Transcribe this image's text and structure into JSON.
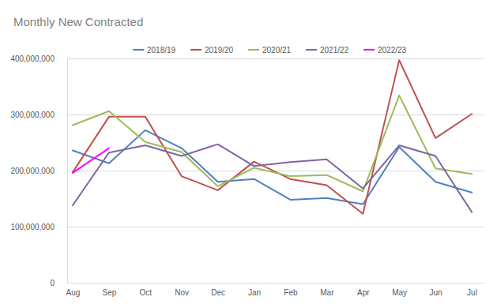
{
  "chart_data": {
    "type": "line",
    "title": "Monthly New Contracted",
    "categories": [
      "Aug",
      "Sep",
      "Oct",
      "Nov",
      "Dec",
      "Jan",
      "Feb",
      "Mar",
      "Apr",
      "May",
      "Jun",
      "Jul"
    ],
    "series": [
      {
        "name": "2018/19",
        "color": "#4f81bd",
        "values": [
          236000000,
          213000000,
          272000000,
          240000000,
          180000000,
          185000000,
          148000000,
          151000000,
          140000000,
          242000000,
          180000000,
          161000000
        ]
      },
      {
        "name": "2019/20",
        "color": "#c0504d",
        "values": [
          197000000,
          296000000,
          296000000,
          190000000,
          165000000,
          216000000,
          185000000,
          174000000,
          123000000,
          397000000,
          258000000,
          301000000
        ]
      },
      {
        "name": "2020/21",
        "color": "#9bbb59",
        "values": [
          281000000,
          306000000,
          251000000,
          233000000,
          172000000,
          205000000,
          190000000,
          192000000,
          163000000,
          334000000,
          204000000,
          194000000
        ]
      },
      {
        "name": "2021/22",
        "color": "#8064a2",
        "values": [
          138000000,
          232000000,
          245000000,
          226000000,
          247000000,
          208000000,
          215000000,
          220000000,
          168000000,
          245000000,
          226000000,
          126000000
        ]
      },
      {
        "name": "2022/23",
        "color": "#ff00ff",
        "values": [
          196000000,
          240000000,
          null,
          null,
          null,
          null,
          null,
          null,
          null,
          null,
          null,
          null
        ]
      }
    ],
    "ylim": [
      0,
      400000000
    ],
    "yticks": [
      0,
      {
        "value": 100000000,
        "label": "100,000,000"
      },
      {
        "value": 200000000,
        "label": "200,000,000"
      },
      {
        "value": 300000000,
        "label": "300,000,000"
      },
      {
        "value": 400000000,
        "label": "400,000,000"
      }
    ],
    "grid": true,
    "legend": "top"
  }
}
